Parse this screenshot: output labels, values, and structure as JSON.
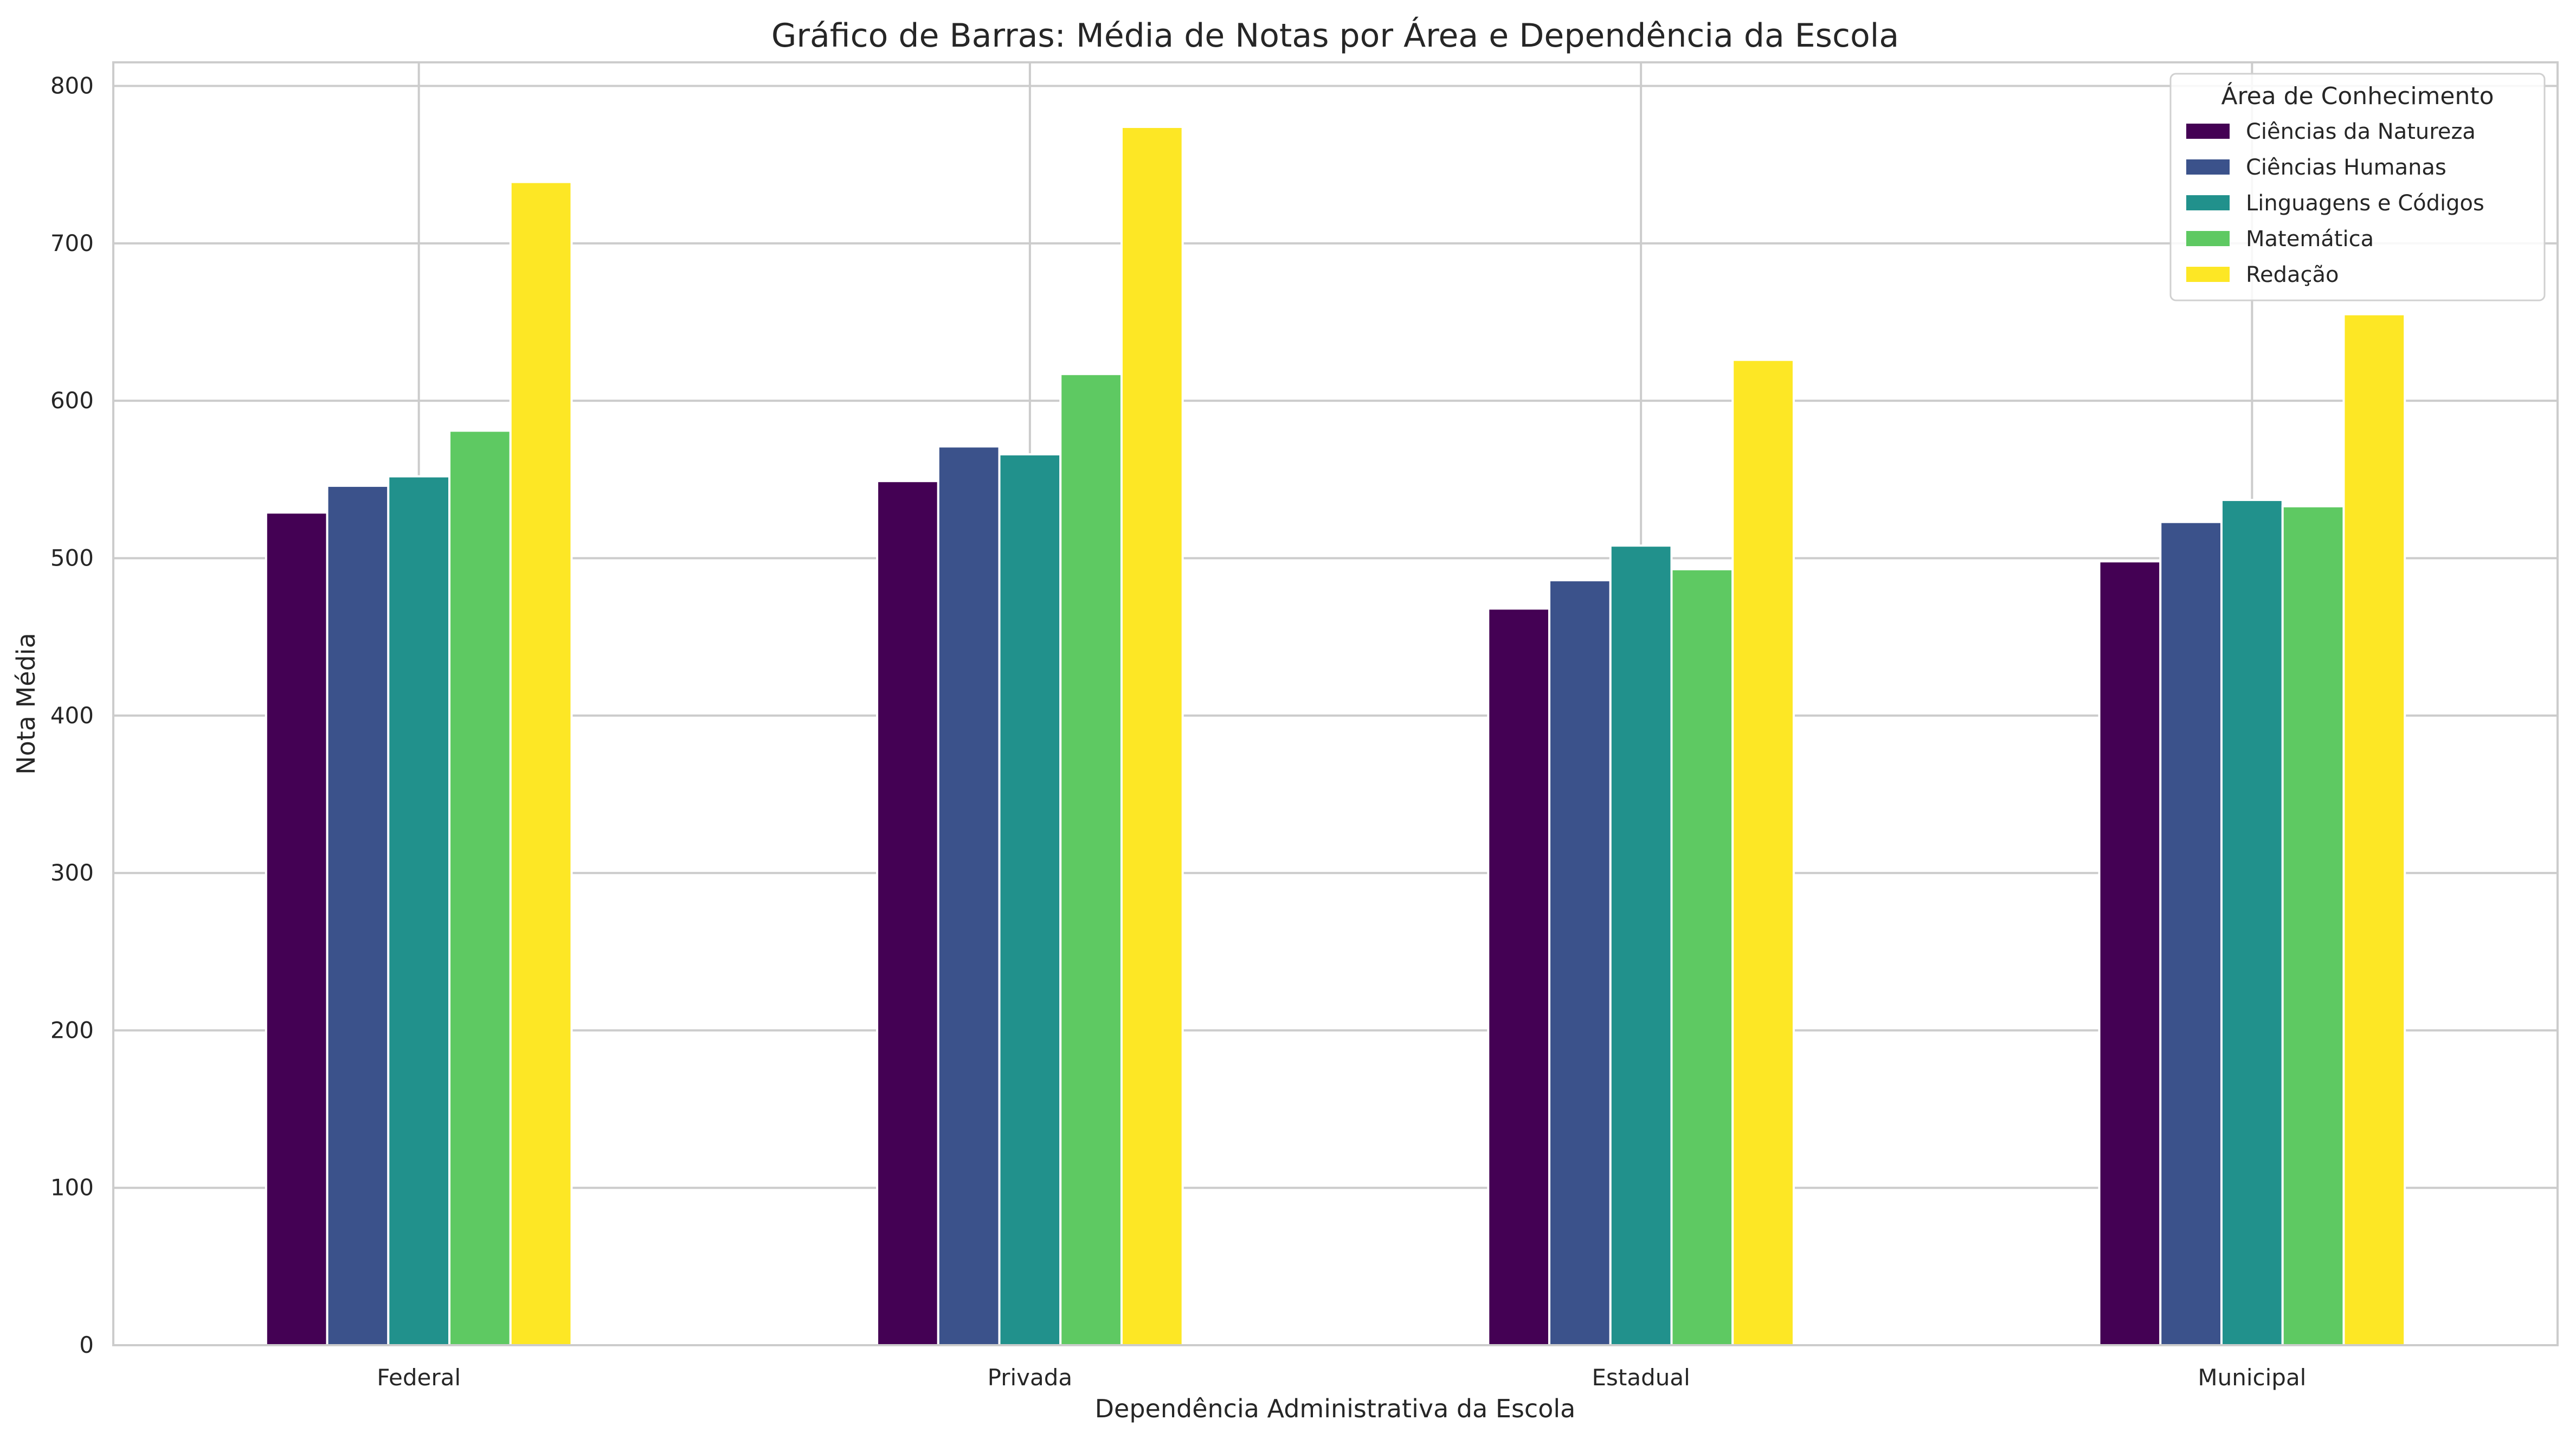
{
  "chart_data": {
    "type": "bar",
    "title": "Gráfico de Barras: Média de Notas por Área e Dependência da Escola",
    "xlabel": "Dependência Administrativa da Escola",
    "ylabel": "Nota Média",
    "categories": [
      "Federal",
      "Privada",
      "Estadual",
      "Municipal"
    ],
    "ylim": [
      0,
      815
    ],
    "yticks": [
      "0",
      "100",
      "200",
      "300",
      "400",
      "500",
      "600",
      "700",
      "800"
    ],
    "grid": true,
    "legend": {
      "title": "Área de Conhecimento",
      "placement": "top-right"
    },
    "series": [
      {
        "name": "Ciências da Natureza",
        "color": "#440154",
        "values": [
          529,
          549,
          468,
          498
        ]
      },
      {
        "name": "Ciências Humanas",
        "color": "#3b528b",
        "values": [
          546,
          571,
          486,
          523
        ]
      },
      {
        "name": "Linguagens e Códigos",
        "color": "#21918c",
        "values": [
          552,
          566,
          508,
          537
        ]
      },
      {
        "name": "Matemática",
        "color": "#5ec962",
        "values": [
          581,
          617,
          493,
          533
        ]
      },
      {
        "name": "Redação",
        "color": "#fde725",
        "values": [
          739,
          774,
          626,
          655
        ]
      }
    ]
  }
}
